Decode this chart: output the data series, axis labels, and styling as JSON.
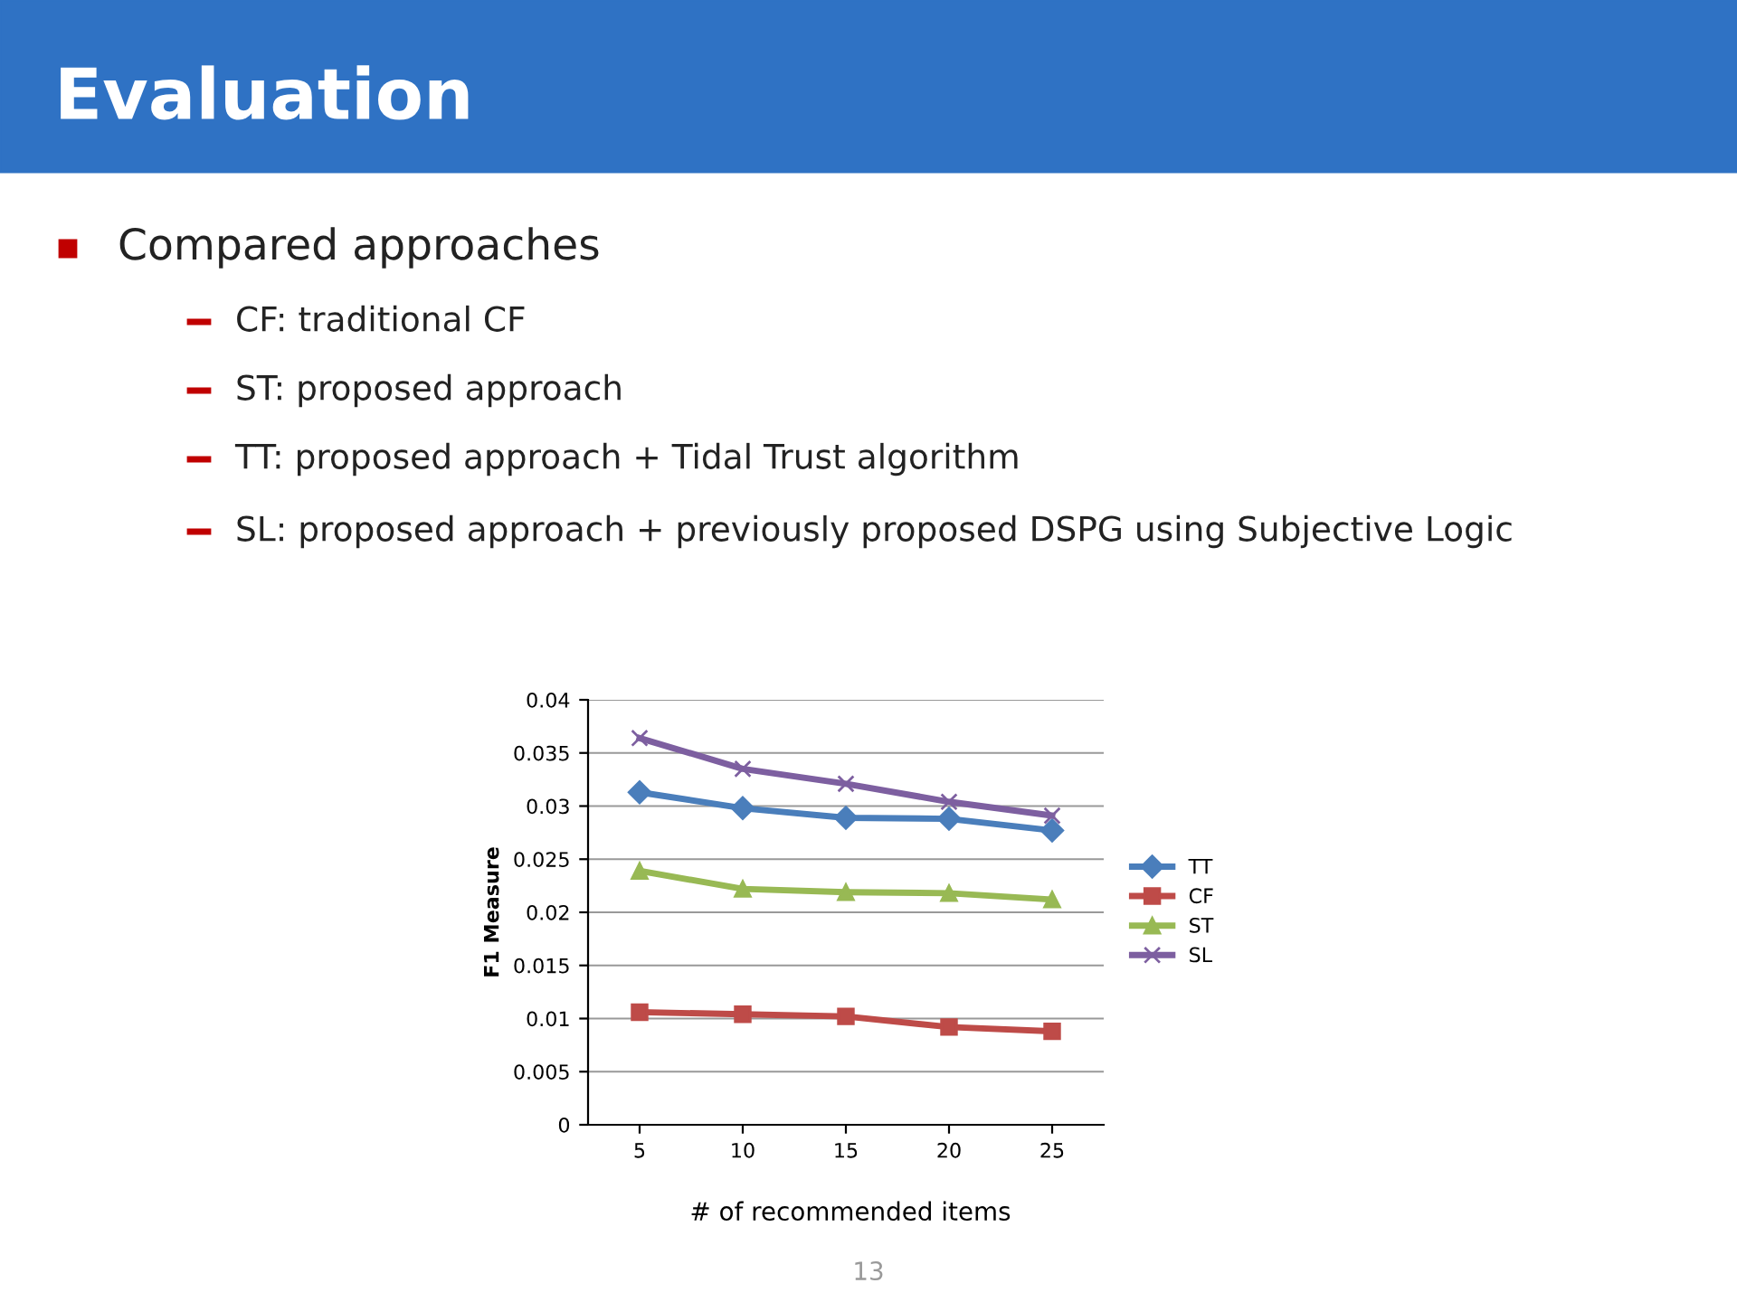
{
  "chart_data": {
    "type": "line",
    "title": "Evaluation",
    "annotations": [
      "Compared approaches",
      "CF: traditional CF",
      "ST: proposed approach",
      "TT: proposed approach + Tidal Trust algorithm",
      "SL: proposed approach + previously proposed DSPG using Subjective Logic",
      "13"
    ],
    "xlabel": "# of recommended items",
    "ylabel": "F1 Measure",
    "categories": [
      "5",
      "10",
      "15",
      "20",
      "25"
    ],
    "series": [
      {
        "name": "TT",
        "color": "#4a7ebb",
        "marker": "diamond",
        "values": [
          0.0313,
          0.0298,
          0.0289,
          0.0288,
          0.0277
        ]
      },
      {
        "name": "CF",
        "color": "#be4b48",
        "marker": "square",
        "values": [
          0.0106,
          0.0104,
          0.0102,
          0.0092,
          0.0088
        ]
      },
      {
        "name": "ST",
        "color": "#98b954",
        "marker": "triangle",
        "values": [
          0.0239,
          0.0222,
          0.0219,
          0.0218,
          0.0212
        ]
      },
      {
        "name": "SL",
        "color": "#7d5fa0",
        "marker": "cross",
        "values": [
          0.0364,
          0.0335,
          0.0321,
          0.0304,
          0.0291
        ]
      }
    ],
    "ylim": [
      0,
      0.04
    ],
    "yticks": [
      0,
      0.005,
      0.01,
      0.015,
      0.02,
      0.025,
      0.03,
      0.035,
      0.04
    ],
    "grid": "y",
    "legend": "right"
  }
}
